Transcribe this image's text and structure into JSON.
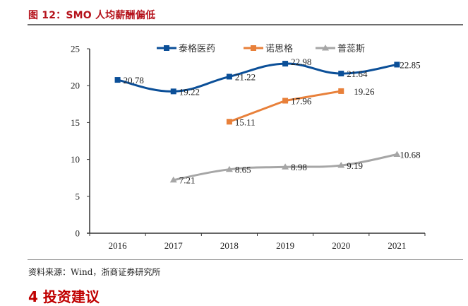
{
  "figure": {
    "title": "图 12：SMO 人均薪酬偏低",
    "source": "资料来源：Wind，浙商证券研究所",
    "next_heading": "4  投资建议"
  },
  "chart_data": {
    "type": "line",
    "title": "SMO 人均薪酬偏低",
    "xlabel": "",
    "ylabel": "",
    "categories": [
      "2016",
      "2017",
      "2018",
      "2019",
      "2020",
      "2021"
    ],
    "ylim": [
      0,
      25
    ],
    "yticks": [
      0,
      5,
      10,
      15,
      20,
      25
    ],
    "grid": false,
    "legend_position": "top-center",
    "series": [
      {
        "name": "泰格医药",
        "color": "#0b4f98",
        "marker": "square",
        "smooth": true,
        "values": [
          20.78,
          19.22,
          21.22,
          22.98,
          21.64,
          22.85
        ]
      },
      {
        "name": "诺思格",
        "color": "#e8803a",
        "marker": "square",
        "smooth": false,
        "values": [
          null,
          null,
          15.11,
          17.96,
          19.26,
          null
        ]
      },
      {
        "name": "普蕊斯",
        "color": "#a6a6a6",
        "marker": "triangle",
        "smooth": true,
        "values": [
          null,
          7.21,
          8.65,
          8.98,
          9.19,
          10.68
        ]
      }
    ]
  }
}
